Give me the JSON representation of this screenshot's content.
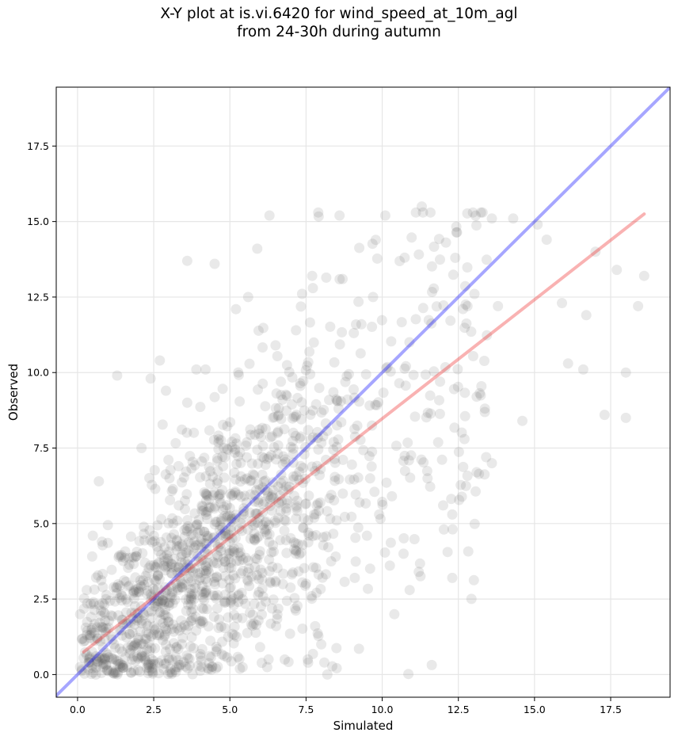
{
  "chart_data": {
    "type": "scatter",
    "title_line1": "X-Y plot at is.vi.6420 for wind_speed_at_10m_agl",
    "title_line2": "from 24-30h during autumn",
    "xlabel": "Simulated",
    "ylabel": "Observed",
    "xlim": [
      -0.7,
      19.45
    ],
    "ylim": [
      -0.75,
      19.45
    ],
    "xticks": [
      0.0,
      2.5,
      5.0,
      7.5,
      10.0,
      12.5,
      15.0,
      17.5
    ],
    "yticks": [
      0.0,
      2.5,
      5.0,
      7.5,
      10.0,
      12.5,
      15.0,
      17.5
    ],
    "xtick_labels": [
      "0.0",
      "2.5",
      "5.0",
      "7.5",
      "10.0",
      "12.5",
      "15.0",
      "17.5"
    ],
    "ytick_labels": [
      "0.0",
      "2.5",
      "5.0",
      "7.5",
      "10.0",
      "12.5",
      "15.0",
      "17.5"
    ],
    "grid": true,
    "point_color": "#555555",
    "lines": [
      {
        "kind": "one-to-one",
        "color": "#0000ff",
        "points": [
          [
            -0.75,
            -0.75
          ],
          [
            19.45,
            19.45
          ]
        ]
      },
      {
        "kind": "regression",
        "color": "#ee2222",
        "points": [
          [
            0.2,
            0.75
          ],
          [
            18.6,
            15.25
          ]
        ]
      }
    ],
    "points": [
      [
        3.6,
        13.7
      ],
      [
        4.5,
        13.6
      ],
      [
        5.9,
        14.1
      ],
      [
        6.3,
        15.2
      ],
      [
        7.9,
        15.3
      ],
      [
        8.6,
        15.2
      ],
      [
        10.1,
        15.2
      ],
      [
        11.3,
        15.5
      ],
      [
        12.4,
        13.8
      ],
      [
        13.6,
        15.1
      ],
      [
        14.3,
        15.1
      ],
      [
        15.1,
        14.9
      ],
      [
        15.4,
        14.4
      ],
      [
        17.0,
        14.0
      ],
      [
        17.7,
        13.4
      ],
      [
        18.6,
        13.2
      ],
      [
        18.4,
        12.2
      ],
      [
        15.9,
        12.3
      ],
      [
        16.7,
        11.9
      ],
      [
        13.8,
        12.2
      ],
      [
        12.8,
        12.2
      ],
      [
        9.7,
        12.5
      ],
      [
        7.7,
        13.2
      ],
      [
        8.7,
        13.1
      ],
      [
        5.2,
        12.1
      ],
      [
        5.6,
        12.5
      ],
      [
        6.5,
        10.9
      ],
      [
        1.3,
        9.9
      ],
      [
        2.4,
        9.8
      ],
      [
        2.7,
        10.4
      ],
      [
        3.9,
        10.1
      ],
      [
        4.2,
        10.1
      ],
      [
        3.6,
        9.0
      ],
      [
        2.9,
        9.4
      ],
      [
        2.1,
        7.5
      ],
      [
        17.3,
        8.6
      ],
      [
        18.0,
        8.5
      ],
      [
        18.0,
        10.0
      ],
      [
        16.1,
        10.3
      ],
      [
        16.6,
        10.1
      ],
      [
        14.6,
        8.4
      ],
      [
        13.1,
        9.2
      ],
      [
        12.7,
        7.8
      ],
      [
        13.1,
        6.7
      ],
      [
        13.6,
        7.0
      ],
      [
        12.3,
        5.3
      ],
      [
        12.0,
        5.6
      ],
      [
        12.3,
        3.2
      ],
      [
        10.4,
        2.0
      ],
      [
        10.9,
        2.8
      ],
      [
        11.2,
        3.4
      ],
      [
        10.7,
        4.0
      ],
      [
        9.1,
        3.2
      ],
      [
        8.0,
        1.0
      ],
      [
        8.1,
        0.4
      ],
      [
        8.2,
        0.0
      ],
      [
        7.8,
        1.6
      ],
      [
        0.2,
        1.1
      ],
      [
        0.3,
        2.8
      ],
      [
        0.7,
        6.4
      ],
      [
        0.8,
        4.4
      ],
      [
        0.5,
        4.6
      ],
      [
        11.9,
        9.7
      ],
      [
        9.9,
        5.3
      ],
      [
        9.5,
        4.6
      ],
      [
        6.8,
        0.5
      ],
      [
        0.6,
        0.0
      ]
    ],
    "cloud_note": ""
  }
}
